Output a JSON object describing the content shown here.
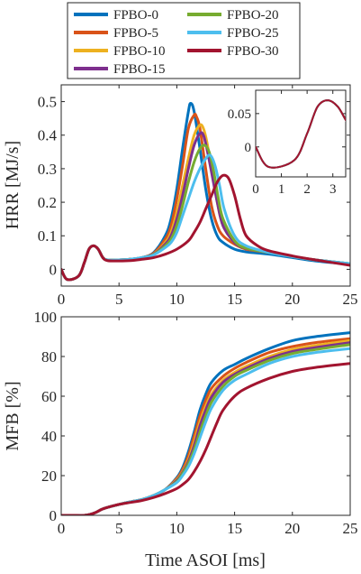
{
  "legend": {
    "entries": [
      {
        "name": "FPBO-0",
        "color": "#0072BD"
      },
      {
        "name": "FPBO-5",
        "color": "#D95319"
      },
      {
        "name": "FPBO-10",
        "color": "#EDB120"
      },
      {
        "name": "FPBO-15",
        "color": "#7E2F8E"
      },
      {
        "name": "FPBO-20",
        "color": "#77AC30"
      },
      {
        "name": "FPBO-25",
        "color": "#4DBEEE"
      },
      {
        "name": "FPBO-30",
        "color": "#A2142F"
      }
    ]
  },
  "chart_data": [
    {
      "type": "line",
      "panel": "hrr",
      "xlabel": "",
      "ylabel": "HRR [MJ/s]",
      "xlim": [
        0,
        25
      ],
      "ylim": [
        -0.05,
        0.55
      ],
      "xticks": [
        0,
        5,
        10,
        15,
        20,
        25
      ],
      "yticks": [
        0,
        0.1,
        0.2,
        0.3,
        0.4,
        0.5
      ],
      "ytick_labels": [
        "0",
        "0.1",
        "0.2",
        "0.3",
        "0.4",
        "0.5"
      ],
      "series": [
        {
          "name": "FPBO-0",
          "x": [
            0,
            0.5,
            1.5,
            2,
            2.4,
            2.8,
            3.2,
            3.6,
            4,
            5,
            6,
            7,
            8,
            9,
            9.5,
            10,
            10.5,
            11,
            11.2,
            11.5,
            12,
            12.5,
            13,
            13.5,
            14,
            15,
            16,
            18,
            20,
            22,
            25
          ],
          "y": [
            0,
            -0.03,
            -0.02,
            0.02,
            0.06,
            0.07,
            0.06,
            0.035,
            0.028,
            0.028,
            0.03,
            0.035,
            0.05,
            0.1,
            0.15,
            0.24,
            0.36,
            0.47,
            0.495,
            0.47,
            0.36,
            0.24,
            0.15,
            0.1,
            0.08,
            0.06,
            0.052,
            0.045,
            0.035,
            0.025,
            0.015
          ]
        },
        {
          "name": "FPBO-5",
          "x": [
            0,
            0.5,
            1.5,
            2,
            2.4,
            2.8,
            3.2,
            3.6,
            4,
            5,
            6,
            7,
            8,
            9,
            9.5,
            10,
            10.5,
            11,
            11.5,
            11.7,
            12,
            12.5,
            13,
            13.5,
            14,
            15,
            16,
            18,
            20,
            22,
            25
          ],
          "y": [
            0,
            -0.03,
            -0.02,
            0.02,
            0.06,
            0.07,
            0.06,
            0.035,
            0.028,
            0.028,
            0.03,
            0.035,
            0.048,
            0.09,
            0.13,
            0.21,
            0.31,
            0.42,
            0.46,
            0.455,
            0.42,
            0.3,
            0.19,
            0.13,
            0.1,
            0.075,
            0.06,
            0.05,
            0.038,
            0.028,
            0.015
          ]
        },
        {
          "name": "FPBO-10",
          "x": [
            0,
            0.5,
            1.5,
            2,
            2.4,
            2.8,
            3.2,
            3.6,
            4,
            5,
            6,
            7,
            8,
            9,
            9.5,
            10,
            10.5,
            11,
            11.5,
            12,
            12.3,
            12.6,
            13,
            13.5,
            14,
            15,
            16,
            18,
            20,
            22,
            25
          ],
          "y": [
            0,
            -0.03,
            -0.02,
            0.02,
            0.06,
            0.07,
            0.06,
            0.035,
            0.028,
            0.028,
            0.03,
            0.035,
            0.046,
            0.08,
            0.11,
            0.17,
            0.25,
            0.33,
            0.4,
            0.43,
            0.42,
            0.38,
            0.3,
            0.2,
            0.13,
            0.08,
            0.062,
            0.05,
            0.038,
            0.028,
            0.017
          ]
        },
        {
          "name": "FPBO-15",
          "x": [
            0,
            0.5,
            1.5,
            2,
            2.4,
            2.8,
            3.2,
            3.6,
            4,
            5,
            6,
            7,
            8,
            9,
            9.5,
            10,
            10.5,
            11,
            11.5,
            12,
            12.3,
            12.6,
            13,
            13.5,
            14,
            15,
            16,
            18,
            20,
            22,
            25
          ],
          "y": [
            0,
            -0.03,
            -0.02,
            0.02,
            0.06,
            0.07,
            0.06,
            0.035,
            0.028,
            0.028,
            0.03,
            0.035,
            0.045,
            0.075,
            0.1,
            0.15,
            0.22,
            0.3,
            0.37,
            0.405,
            0.4,
            0.36,
            0.29,
            0.2,
            0.13,
            0.08,
            0.062,
            0.05,
            0.038,
            0.028,
            0.017
          ]
        },
        {
          "name": "FPBO-20",
          "x": [
            0,
            0.5,
            1.5,
            2,
            2.4,
            2.8,
            3.2,
            3.6,
            4,
            5,
            6,
            7,
            8,
            9,
            9.5,
            10,
            10.5,
            11,
            11.5,
            12,
            12.4,
            12.8,
            13.2,
            13.6,
            14,
            15,
            16,
            18,
            20,
            22,
            25
          ],
          "y": [
            0,
            -0.03,
            -0.02,
            0.02,
            0.06,
            0.07,
            0.06,
            0.035,
            0.028,
            0.028,
            0.03,
            0.035,
            0.044,
            0.07,
            0.09,
            0.13,
            0.19,
            0.26,
            0.32,
            0.36,
            0.37,
            0.35,
            0.29,
            0.21,
            0.15,
            0.085,
            0.063,
            0.05,
            0.038,
            0.028,
            0.017
          ]
        },
        {
          "name": "FPBO-25",
          "x": [
            0,
            0.5,
            1.5,
            2,
            2.4,
            2.8,
            3.2,
            3.6,
            4,
            5,
            6,
            7,
            8,
            9,
            9.5,
            10,
            10.5,
            11,
            11.5,
            12,
            12.5,
            12.9,
            13.3,
            13.7,
            14.1,
            15,
            16,
            18,
            20,
            22,
            25
          ],
          "y": [
            0,
            -0.03,
            -0.02,
            0.02,
            0.06,
            0.07,
            0.06,
            0.035,
            0.028,
            0.028,
            0.03,
            0.035,
            0.043,
            0.065,
            0.08,
            0.11,
            0.16,
            0.21,
            0.26,
            0.3,
            0.33,
            0.34,
            0.31,
            0.25,
            0.18,
            0.1,
            0.07,
            0.05,
            0.038,
            0.028,
            0.017
          ]
        },
        {
          "name": "FPBO-30",
          "x": [
            0,
            0.5,
            1.5,
            2,
            2.4,
            2.8,
            3.2,
            3.6,
            4,
            5,
            6,
            7,
            8,
            9,
            10,
            11,
            11.5,
            12,
            12.5,
            13,
            13.5,
            14,
            14.5,
            15,
            15.5,
            16,
            17,
            18,
            20,
            22,
            25
          ],
          "y": [
            0,
            -0.03,
            -0.02,
            0.02,
            0.06,
            0.07,
            0.06,
            0.035,
            0.026,
            0.025,
            0.026,
            0.03,
            0.035,
            0.045,
            0.06,
            0.085,
            0.11,
            0.14,
            0.18,
            0.22,
            0.26,
            0.28,
            0.27,
            0.22,
            0.15,
            0.1,
            0.07,
            0.055,
            0.04,
            0.028,
            0.012
          ]
        }
      ]
    },
    {
      "type": "line",
      "panel": "hrr-inset",
      "xlim": [
        0,
        3.5
      ],
      "ylim": [
        -0.045,
        0.085
      ],
      "xticks": [
        0,
        1,
        2,
        3
      ],
      "yticks": [
        0,
        0.05
      ],
      "ytick_labels": [
        "0",
        "0.05"
      ],
      "series_ref": "hrr"
    },
    {
      "type": "line",
      "panel": "mfb",
      "xlabel": "Time ASOI [ms]",
      "ylabel": "MFB [%]",
      "xlim": [
        0,
        25
      ],
      "ylim": [
        0,
        100
      ],
      "xticks": [
        0,
        5,
        10,
        15,
        20,
        25
      ],
      "yticks": [
        0,
        20,
        40,
        60,
        80,
        100
      ],
      "series": [
        {
          "name": "FPBO-0",
          "x": [
            0,
            1,
            2,
            2.5,
            3,
            3.5,
            4,
            5,
            6,
            7,
            8,
            9,
            10,
            10.5,
            11,
            11.5,
            12,
            12.5,
            13,
            14,
            15,
            16,
            18,
            20,
            22,
            25
          ],
          "y": [
            0,
            0,
            0,
            0.5,
            1.5,
            3,
            4,
            5.5,
            6.8,
            8,
            10,
            13,
            19,
            24,
            32,
            42,
            53,
            61,
            67,
            73,
            76,
            79,
            84,
            88,
            90,
            92
          ]
        },
        {
          "name": "FPBO-5",
          "x": [
            0,
            1,
            2,
            2.5,
            3,
            3.5,
            4,
            5,
            6,
            7,
            8,
            9,
            10,
            10.5,
            11,
            11.5,
            12,
            12.5,
            13,
            14,
            15,
            16,
            18,
            20,
            22,
            25
          ],
          "y": [
            0,
            0,
            0,
            0.5,
            1.5,
            3,
            4,
            5.5,
            6.8,
            8,
            10,
            13,
            18.5,
            23,
            30,
            40,
            50,
            58,
            64,
            70,
            74,
            77,
            82,
            85,
            87,
            89
          ]
        },
        {
          "name": "FPBO-10",
          "x": [
            0,
            1,
            2,
            2.5,
            3,
            3.5,
            4,
            5,
            6,
            7,
            8,
            9,
            10,
            10.5,
            11,
            11.5,
            12,
            12.5,
            13,
            14,
            15,
            16,
            18,
            20,
            22,
            25
          ],
          "y": [
            0,
            0,
            0,
            0.5,
            1.5,
            3,
            4,
            5.5,
            6.8,
            8,
            10,
            13,
            18,
            22,
            28,
            37,
            47,
            55,
            61,
            68,
            72,
            75,
            80,
            83.5,
            85.5,
            88
          ]
        },
        {
          "name": "FPBO-15",
          "x": [
            0,
            1,
            2,
            2.5,
            3,
            3.5,
            4,
            5,
            6,
            7,
            8,
            9,
            10,
            10.5,
            11,
            11.5,
            12,
            12.5,
            13,
            14,
            15,
            16,
            18,
            20,
            22,
            25
          ],
          "y": [
            0,
            0,
            0,
            0.5,
            1.5,
            3,
            4,
            5.5,
            6.8,
            8,
            10,
            13,
            17.5,
            21.5,
            27,
            35,
            45,
            53,
            59.5,
            67,
            71,
            74,
            79,
            82.5,
            84.5,
            87
          ]
        },
        {
          "name": "FPBO-20",
          "x": [
            0,
            1,
            2,
            2.5,
            3,
            3.5,
            4,
            5,
            6,
            7,
            8,
            9,
            10,
            10.5,
            11,
            11.5,
            12,
            12.5,
            13,
            14,
            15,
            16,
            18,
            20,
            22,
            25
          ],
          "y": [
            0,
            0,
            0,
            0.5,
            1.5,
            3,
            4,
            5.5,
            6.8,
            8,
            10,
            13,
            17,
            21,
            26,
            33,
            42,
            50,
            57,
            65,
            70,
            73,
            78,
            81.5,
            83.5,
            86
          ]
        },
        {
          "name": "FPBO-25",
          "x": [
            0,
            1,
            2,
            2.5,
            3,
            3.5,
            4,
            5,
            6,
            7,
            8,
            9,
            10,
            10.5,
            11,
            11.5,
            12,
            12.5,
            13,
            14,
            15,
            16,
            18,
            20,
            22,
            25
          ],
          "y": [
            0,
            0,
            0,
            0.5,
            1.5,
            3,
            4,
            5.5,
            6.8,
            8,
            10,
            13,
            16.5,
            20,
            24.5,
            31,
            39,
            47,
            54,
            63,
            68,
            71,
            76.5,
            80,
            82,
            84
          ]
        },
        {
          "name": "FPBO-30",
          "x": [
            0,
            1,
            2,
            2.5,
            3,
            3.5,
            4,
            5,
            6,
            7,
            8,
            9,
            10,
            10.5,
            11,
            11.5,
            12,
            12.5,
            13,
            13.5,
            14,
            15,
            16,
            18,
            20,
            22,
            25
          ],
          "y": [
            0,
            0,
            0,
            0.5,
            1.5,
            3,
            4,
            5.5,
            6.5,
            7.5,
            9,
            11,
            13.5,
            15.5,
            18,
            22,
            27,
            33,
            40,
            47,
            53,
            60,
            64,
            69,
            72.5,
            74.5,
            76.5
          ]
        }
      ]
    }
  ]
}
